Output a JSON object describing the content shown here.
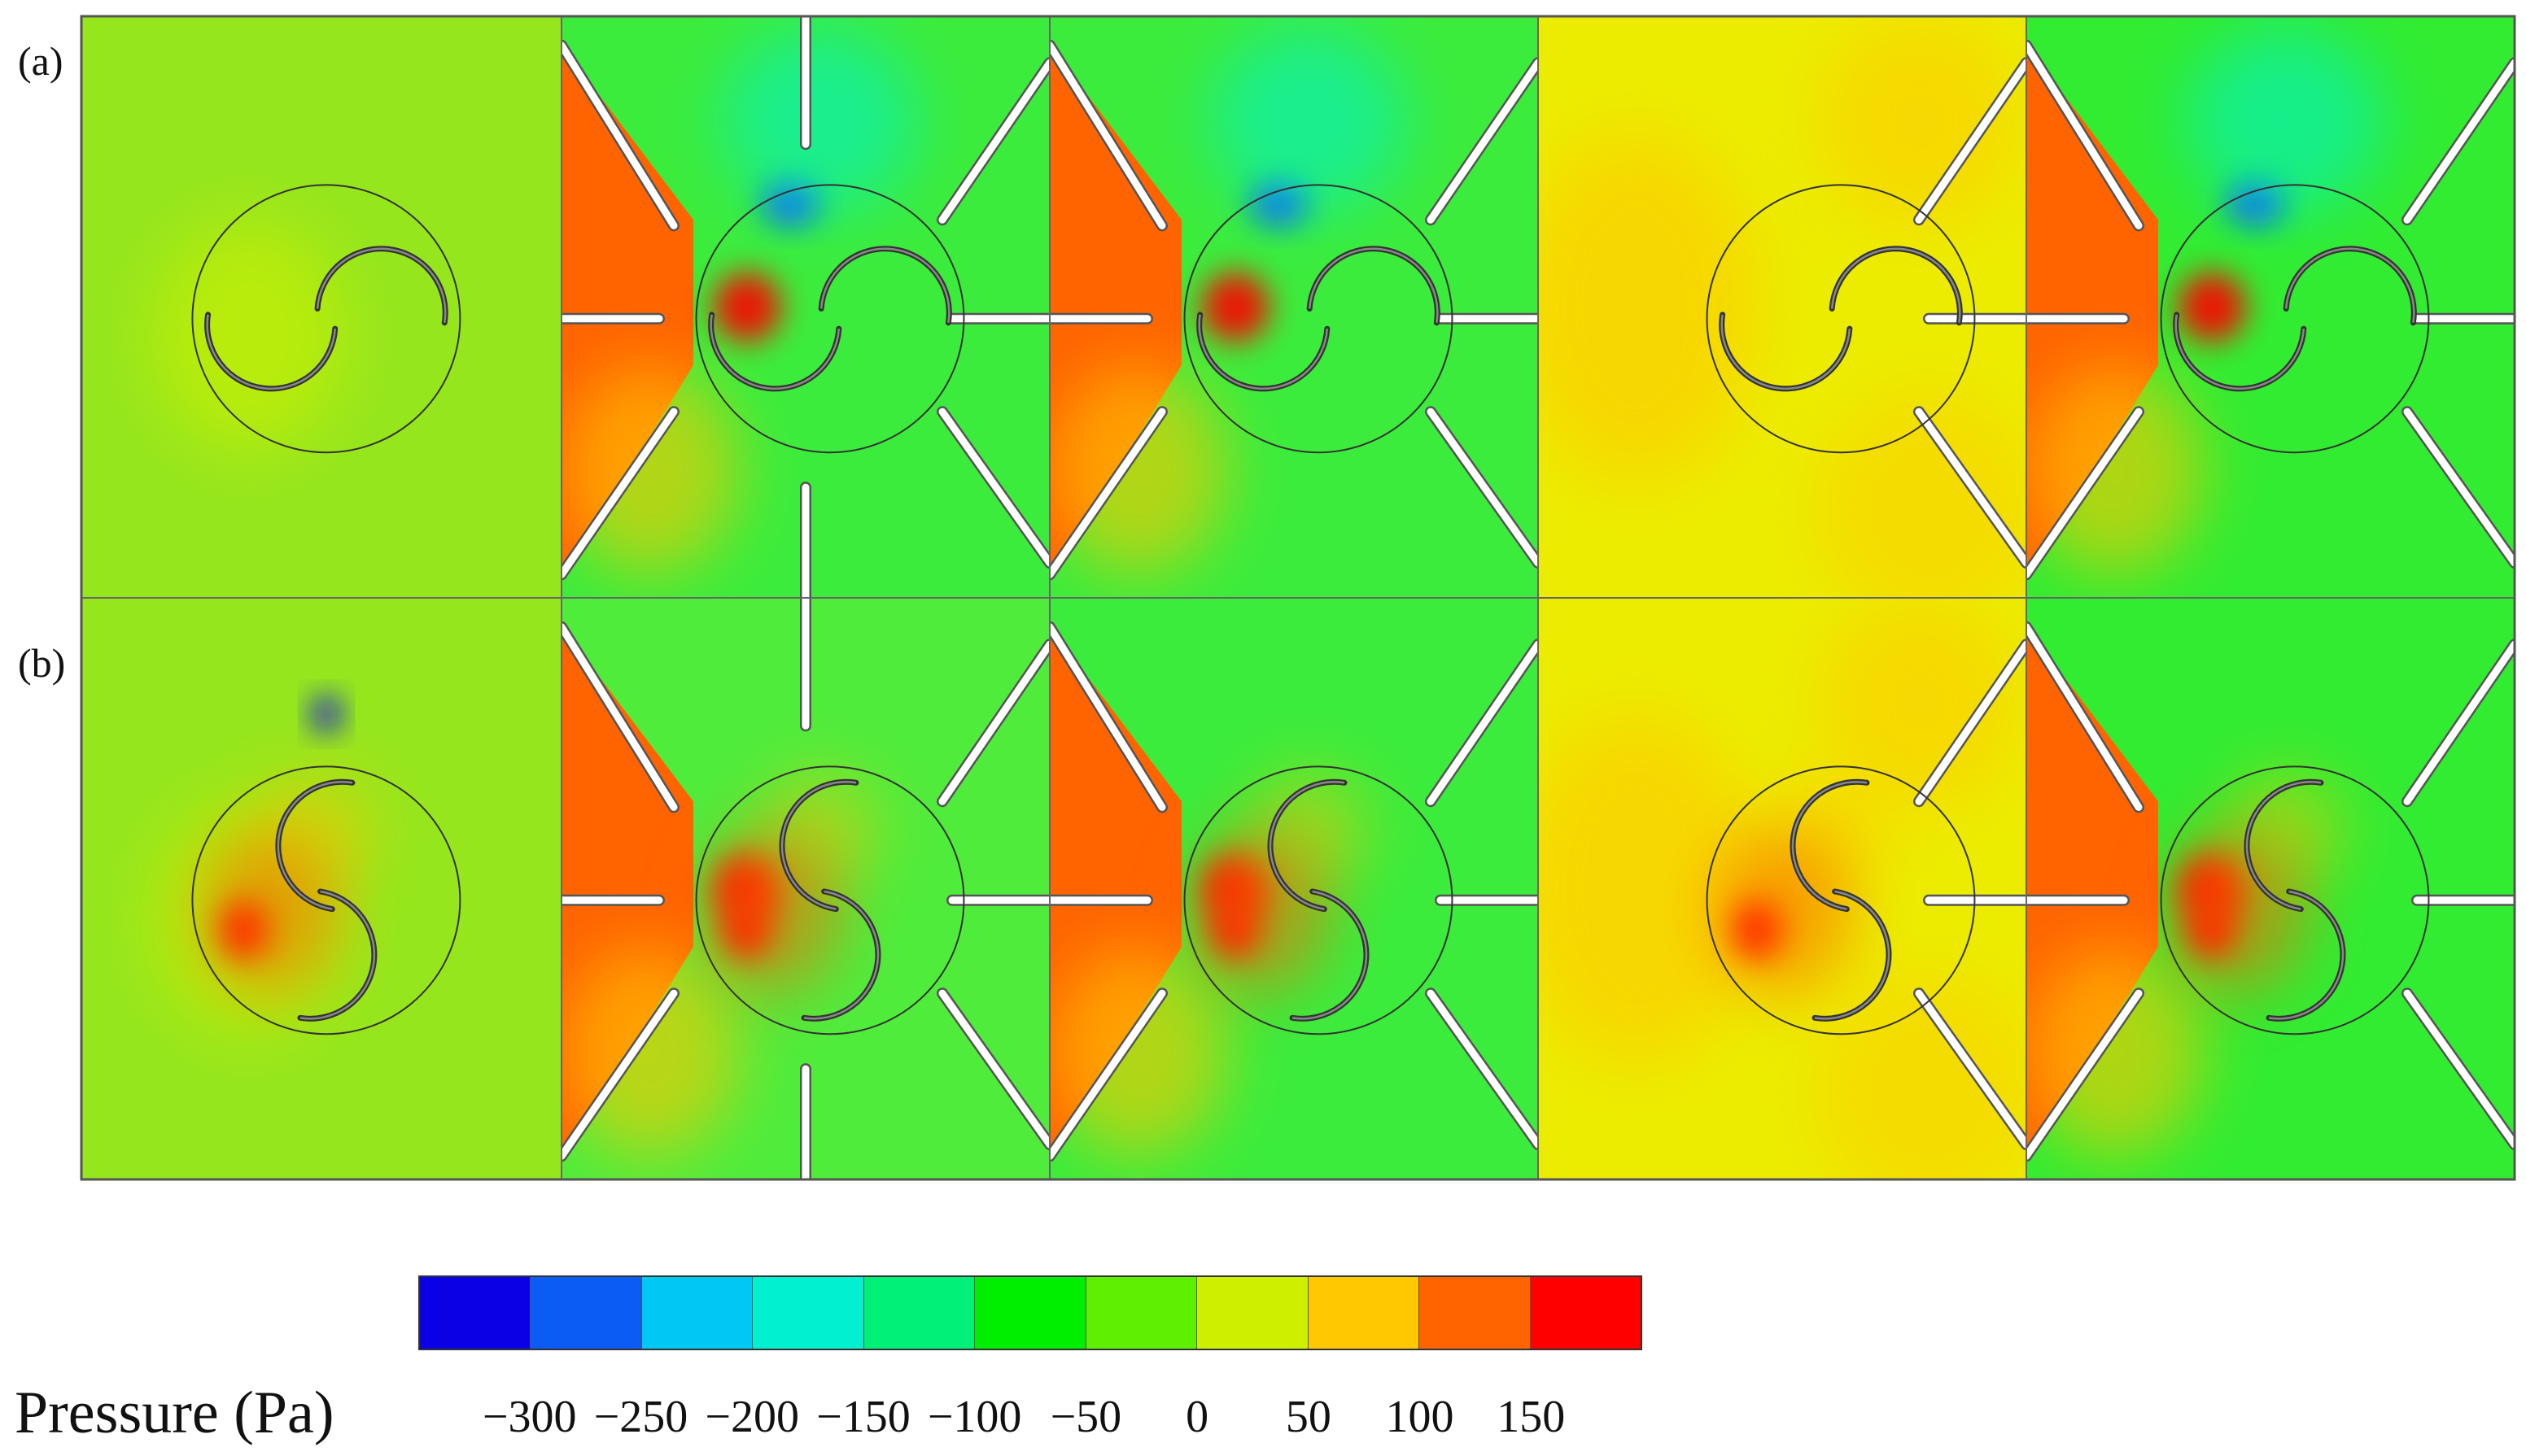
{
  "row_labels": [
    "(a)",
    "(b)"
  ],
  "legend": {
    "title": "Pressure (Pa)",
    "ticks": [
      "−300",
      "−250",
      "−200",
      "−150",
      "−100",
      "−50",
      "0",
      "50",
      "100",
      "150"
    ],
    "colors": [
      "#0a00e6",
      "#0a5cf5",
      "#00c8f5",
      "#00f0d0",
      "#00f078",
      "#00ee00",
      "#5ef000",
      "#cef000",
      "#ffc800",
      "#ff6400",
      "#fe0000"
    ]
  },
  "panels": [
    {
      "row": 0,
      "col": 0,
      "background": "#96e61e",
      "walls": "none"
    },
    {
      "row": 0,
      "col": 1,
      "background": "#3cec3c",
      "walls": "full-with-vertical"
    },
    {
      "row": 0,
      "col": 2,
      "background": "#3cec3c",
      "walls": "full"
    },
    {
      "row": 0,
      "col": 3,
      "background": "#ecec00",
      "walls": "right-only"
    },
    {
      "row": 0,
      "col": 4,
      "background": "#32ec32",
      "walls": "full"
    },
    {
      "row": 1,
      "col": 0,
      "background": "#96e61e",
      "walls": "none"
    },
    {
      "row": 1,
      "col": 1,
      "background": "#50ec3c",
      "walls": "full-with-vertical"
    },
    {
      "row": 1,
      "col": 2,
      "background": "#3cec3c",
      "walls": "full"
    },
    {
      "row": 1,
      "col": 3,
      "background": "#ecec00",
      "walls": "right-only"
    },
    {
      "row": 1,
      "col": 4,
      "background": "#32ec32",
      "walls": "full"
    }
  ]
}
